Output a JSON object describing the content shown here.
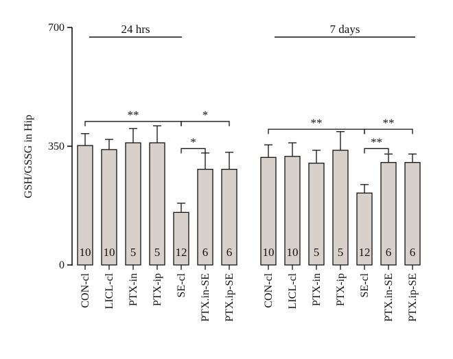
{
  "colors": {
    "bar_fill": "#d8d0cb",
    "stroke": "#111111"
  },
  "chart_data": {
    "type": "bar",
    "ylabel": "GSH/GSSG in Hip",
    "ylim": [
      0,
      700
    ],
    "yticks": [
      0,
      350,
      700
    ],
    "error_bars": "one-sided upper, SEM",
    "groups": [
      {
        "label": "24 hrs",
        "categories": [
          "CON-cl",
          "LICL-cl",
          "PTX-in",
          "PTX-ip",
          "SE-cl",
          "PTX.in-SE",
          "PTX.ip-SE"
        ],
        "values": [
          352,
          340,
          360,
          360,
          155,
          282,
          282
        ],
        "errors": [
          35,
          30,
          42,
          50,
          27,
          48,
          50
        ],
        "n": [
          "10",
          "10",
          "5",
          "5",
          "12",
          "6",
          "6"
        ],
        "significance": [
          {
            "from": 0,
            "to": 4,
            "label": "**",
            "y": 423
          },
          {
            "from": 4,
            "to": 6,
            "label": "*",
            "y": 423
          },
          {
            "from": 4,
            "to": 5,
            "label": "*",
            "y": 343
          }
        ]
      },
      {
        "label": "7 days",
        "categories": [
          "CON-cl",
          "LICL-cl",
          "PTX-in",
          "PTX-ip",
          "SE-cl",
          "PTX.in-SE",
          "PTX.ip-SE"
        ],
        "values": [
          317,
          320,
          300,
          338,
          212,
          302,
          302
        ],
        "errors": [
          37,
          40,
          38,
          55,
          25,
          25,
          25
        ],
        "n": [
          "10",
          "10",
          "5",
          "5",
          "12",
          "6",
          "6"
        ],
        "significance": [
          {
            "from": 0,
            "to": 4,
            "label": "**",
            "y": 400
          },
          {
            "from": 4,
            "to": 6,
            "label": "**",
            "y": 400
          },
          {
            "from": 4,
            "to": 5,
            "label": "**",
            "y": 343
          }
        ]
      }
    ]
  }
}
